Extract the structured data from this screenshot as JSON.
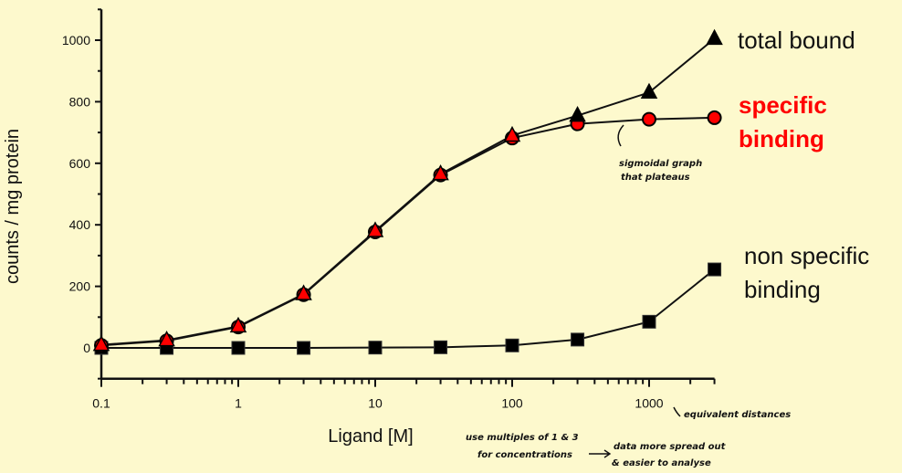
{
  "chart_data": {
    "type": "line",
    "title": "",
    "xlabel": "Ligand [M]",
    "ylabel": "counts / mg protein",
    "xscale": "log",
    "xlim": [
      0.1,
      3000
    ],
    "ylim": [
      -100,
      1100
    ],
    "x_ticks": [
      "0.1",
      "1",
      "10",
      "100",
      "1000"
    ],
    "y_ticks": [
      "0",
      "200",
      "400",
      "600",
      "800",
      "1000"
    ],
    "x": [
      0.1,
      0.3,
      1,
      3,
      10,
      30,
      100,
      300,
      1000,
      3000
    ],
    "series": [
      {
        "name": "total bound",
        "marker": "triangle",
        "color": "#000000",
        "values": [
          10,
          25,
          70,
          175,
          380,
          565,
          690,
          755,
          830,
          1005
        ]
      },
      {
        "name": "specific binding",
        "marker": "circle",
        "color": "#ff0000",
        "values": [
          8,
          23,
          68,
          173,
          377,
          562,
          682,
          728,
          743,
          748
        ]
      },
      {
        "name": "non specific binding",
        "marker": "square",
        "color": "#000000",
        "values": [
          0,
          0,
          0,
          0,
          1,
          2,
          8,
          27,
          85,
          255
        ]
      }
    ],
    "grid": false,
    "legend_position": "inline-right"
  },
  "labels": {
    "total_bound": "total bound",
    "specific_line1": "specific",
    "specific_line2": "binding",
    "nonspecific_line1": "non specific",
    "nonspecific_line2": "binding"
  },
  "annotations": {
    "sigmoid_line1": "sigmoidal graph",
    "sigmoid_line2": "that plateaus",
    "equivalent": "equivalent distances",
    "multiples_line1": "use multiples of 1 & 3",
    "multiples_line2": "for concentrations",
    "spread_line1": "data more spread out",
    "spread_line2": "& easier to analyse"
  },
  "colors": {
    "background": "#fdf9cd",
    "specific": "#ff0000",
    "axis": "#111111"
  }
}
